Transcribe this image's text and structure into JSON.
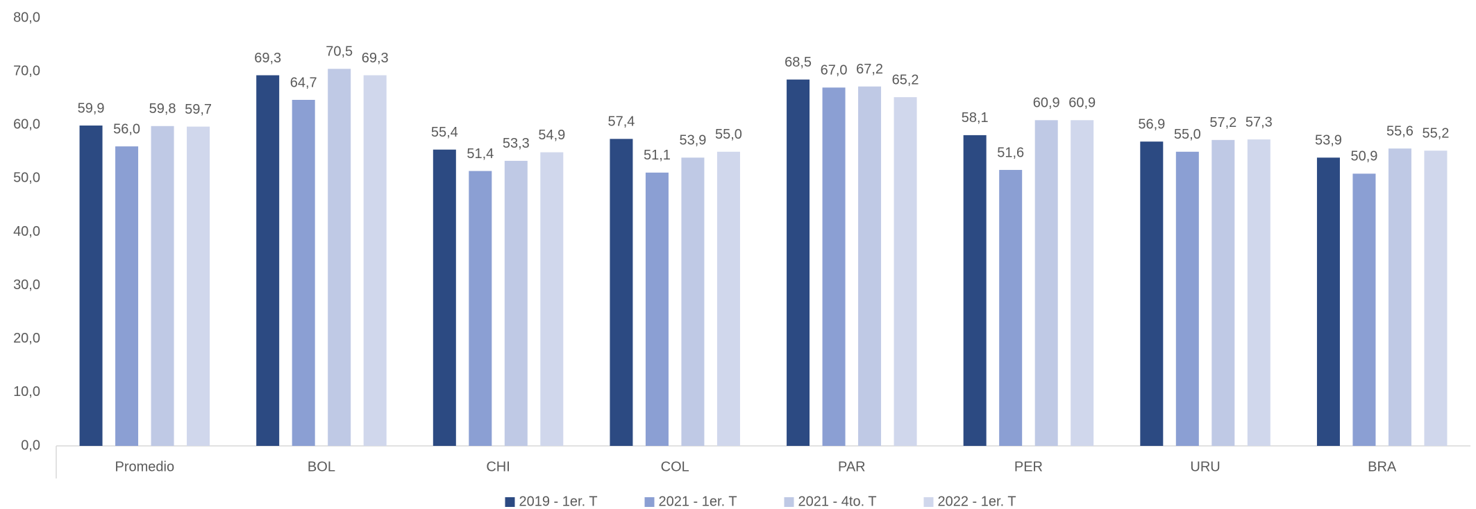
{
  "chart_data": {
    "type": "bar",
    "categories": [
      "Promedio",
      "BOL",
      "CHI",
      "COL",
      "PAR",
      "PER",
      "URU",
      "BRA"
    ],
    "series": [
      {
        "name": "2019 - 1er. T",
        "color": "#2c4a82",
        "values": [
          59.9,
          69.3,
          55.4,
          57.4,
          68.5,
          58.1,
          56.9,
          53.9
        ],
        "value_labels": [
          "59,9",
          "69,3",
          "55,4",
          "57,4",
          "68,5",
          "58,1",
          "56,9",
          "53,9"
        ]
      },
      {
        "name": "2021 - 1er. T",
        "color": "#8b9fd3",
        "values": [
          56.0,
          64.7,
          51.4,
          51.1,
          67.0,
          51.6,
          55.0,
          50.9
        ],
        "value_labels": [
          "56,0",
          "64,7",
          "51,4",
          "51,1",
          "67,0",
          "51,6",
          "55,0",
          "50,9"
        ]
      },
      {
        "name": "2021 - 4to. T",
        "color": "#bfc9e5",
        "values": [
          59.8,
          70.5,
          53.3,
          53.9,
          67.2,
          60.9,
          57.2,
          55.6
        ],
        "value_labels": [
          "59,8",
          "70,5",
          "53,3",
          "53,9",
          "67,2",
          "60,9",
          "57,2",
          "55,6"
        ]
      },
      {
        "name": "2022 - 1er. T",
        "color": "#d0d7ec",
        "values": [
          59.7,
          69.3,
          54.9,
          55.0,
          65.2,
          60.9,
          57.3,
          55.2
        ],
        "value_labels": [
          "59,7",
          "69,3",
          "54,9",
          "55,0",
          "65,2",
          "60,9",
          "57,3",
          "55,2"
        ]
      }
    ],
    "ylim": [
      0,
      80
    ],
    "yticks": [
      {
        "value": 0,
        "label": "0,0"
      },
      {
        "value": 10,
        "label": "10,0"
      },
      {
        "value": 20,
        "label": "20,0"
      },
      {
        "value": 30,
        "label": "30,0"
      },
      {
        "value": 40,
        "label": "40,0"
      },
      {
        "value": 50,
        "label": "50,0"
      },
      {
        "value": 60,
        "label": "60,0"
      },
      {
        "value": 70,
        "label": "70,0"
      },
      {
        "value": 80,
        "label": "80,0"
      }
    ],
    "grid": false,
    "legend": "bottom"
  }
}
